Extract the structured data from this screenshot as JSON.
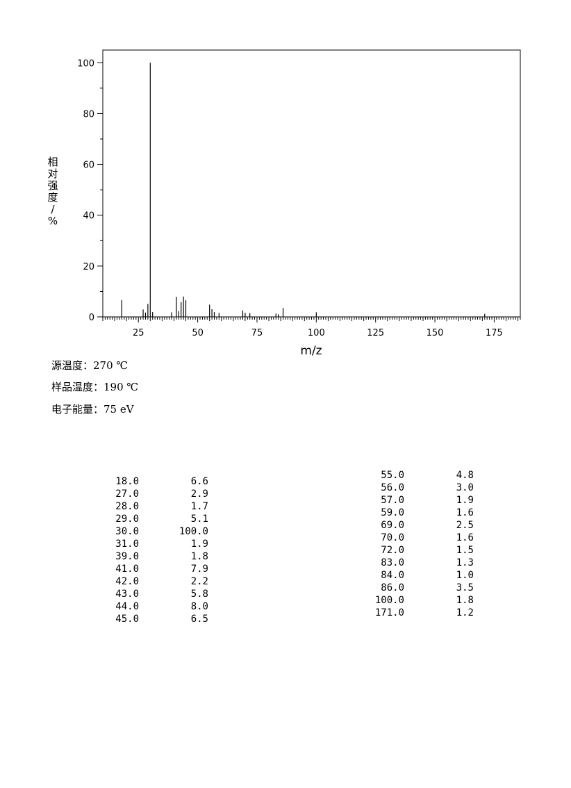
{
  "chart_data": {
    "type": "bar",
    "xlabel": "m/z",
    "ylabel": "相对强度/%",
    "xlim": [
      10,
      186
    ],
    "ylim": [
      0,
      105
    ],
    "x_ticks": [
      25,
      50,
      75,
      100,
      125,
      150,
      175
    ],
    "y_ticks": [
      0,
      20,
      40,
      60,
      80,
      100
    ],
    "x": [
      18,
      27,
      28,
      29,
      30,
      31,
      39,
      41,
      42,
      43,
      44,
      45,
      55,
      56,
      57,
      59,
      69,
      70,
      72,
      83,
      84,
      86,
      100,
      171
    ],
    "values": [
      6.6,
      2.9,
      1.7,
      5.1,
      100.0,
      1.9,
      1.8,
      7.9,
      2.2,
      5.8,
      8.0,
      6.5,
      4.8,
      3.0,
      1.9,
      1.6,
      2.5,
      1.6,
      1.5,
      1.3,
      1.0,
      3.5,
      1.8,
      1.2
    ],
    "grid": false
  },
  "conditions": [
    "源温度：270 ℃",
    "样品温度：190 ℃",
    "电子能量：75 eV"
  ],
  "peak_table": {
    "left": [
      [
        "18.0",
        "6.6"
      ],
      [
        "27.0",
        "2.9"
      ],
      [
        "28.0",
        "1.7"
      ],
      [
        "29.0",
        "5.1"
      ],
      [
        "30.0",
        "100.0"
      ],
      [
        "31.0",
        "1.9"
      ],
      [
        "39.0",
        "1.8"
      ],
      [
        "41.0",
        "7.9"
      ],
      [
        "42.0",
        "2.2"
      ],
      [
        "43.0",
        "5.8"
      ],
      [
        "44.0",
        "8.0"
      ],
      [
        "45.0",
        "6.5"
      ]
    ],
    "right": [
      [
        "55.0",
        "4.8"
      ],
      [
        "56.0",
        "3.0"
      ],
      [
        "57.0",
        "1.9"
      ],
      [
        "59.0",
        "1.6"
      ],
      [
        "69.0",
        "2.5"
      ],
      [
        "70.0",
        "1.6"
      ],
      [
        "72.0",
        "1.5"
      ],
      [
        "83.0",
        "1.3"
      ],
      [
        "84.0",
        "1.0"
      ],
      [
        "86.0",
        "3.5"
      ],
      [
        "100.0",
        "1.8"
      ],
      [
        "171.0",
        "1.2"
      ]
    ]
  }
}
